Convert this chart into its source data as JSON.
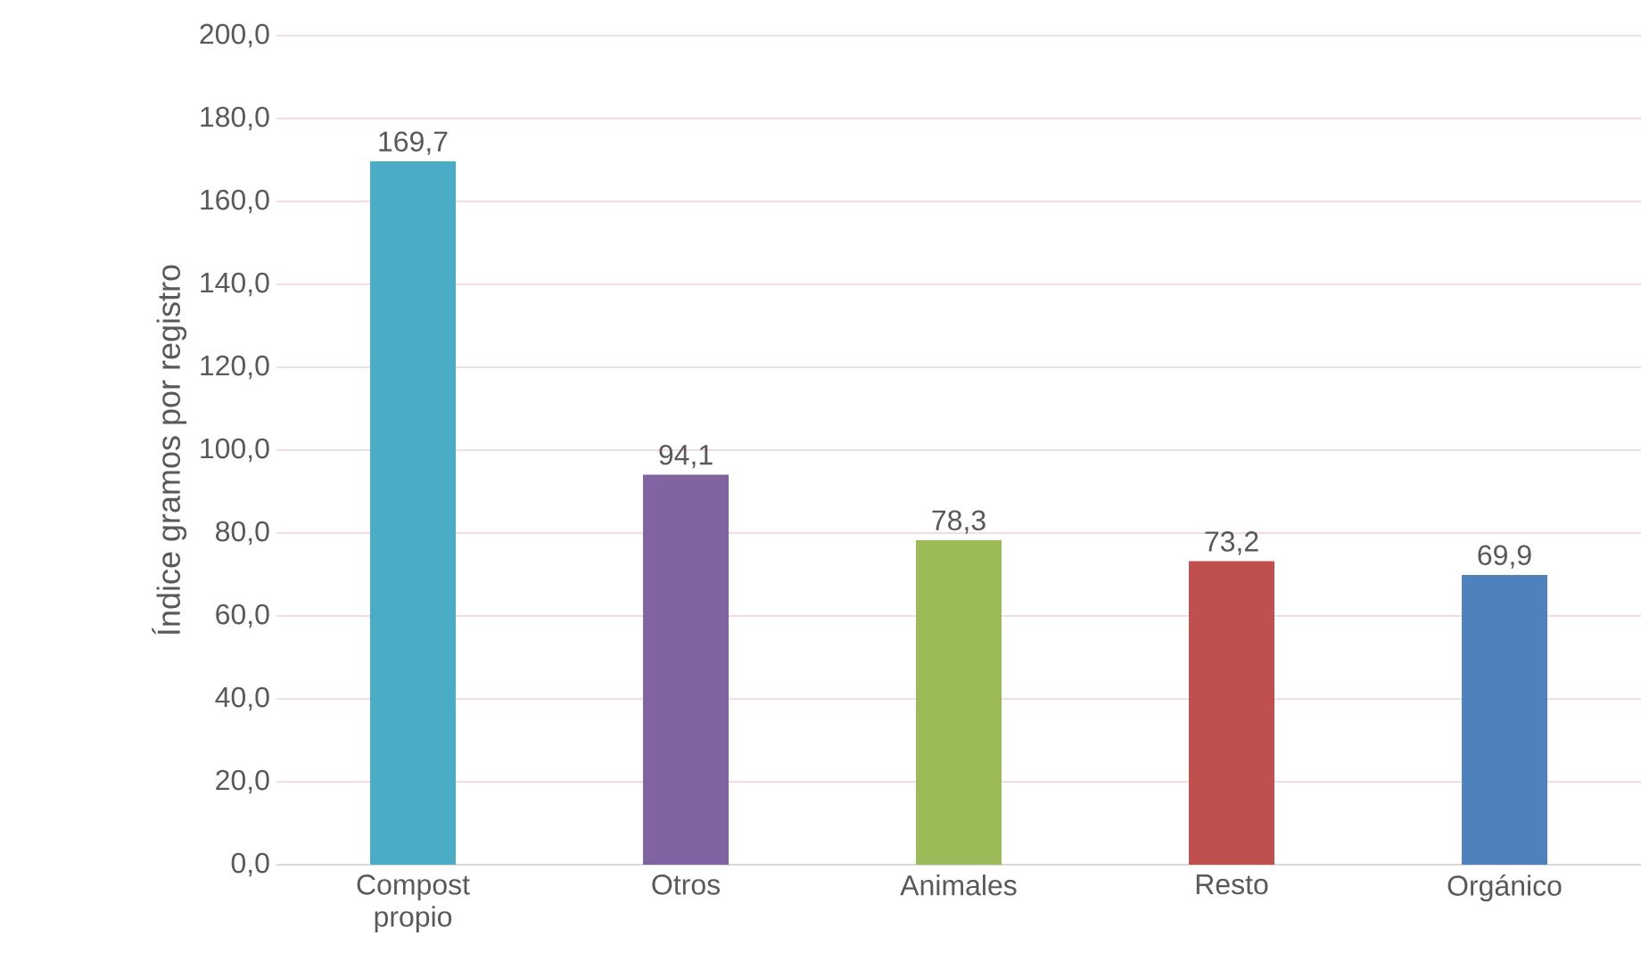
{
  "chart_data": {
    "type": "bar",
    "ylabel": "Índice gramos por registro",
    "categories": [
      "Compost propio",
      "Otros",
      "Animales",
      "Resto",
      "Orgánico"
    ],
    "values": [
      169.7,
      94.1,
      78.3,
      73.2,
      69.9
    ],
    "colors": [
      "#4bacc6",
      "#8064a2",
      "#9bbb59",
      "#c0504d",
      "#4f81bd"
    ],
    "value_labels": [
      "169,7",
      "94,1",
      "78,3",
      "73,2",
      "69,9"
    ],
    "ylim": [
      0,
      200
    ],
    "yticks": [
      {
        "value": 0,
        "label": "0,0"
      },
      {
        "value": 20,
        "label": "20,0"
      },
      {
        "value": 40,
        "label": "40,0"
      },
      {
        "value": 60,
        "label": "60,0"
      },
      {
        "value": 80,
        "label": "80,0"
      },
      {
        "value": 100,
        "label": "100,0"
      },
      {
        "value": 120,
        "label": "120,0"
      },
      {
        "value": 140,
        "label": "140,0"
      },
      {
        "value": 160,
        "label": "160,0"
      },
      {
        "value": 180,
        "label": "180,0"
      },
      {
        "value": 200,
        "label": "200,0"
      }
    ],
    "grid": "y"
  }
}
